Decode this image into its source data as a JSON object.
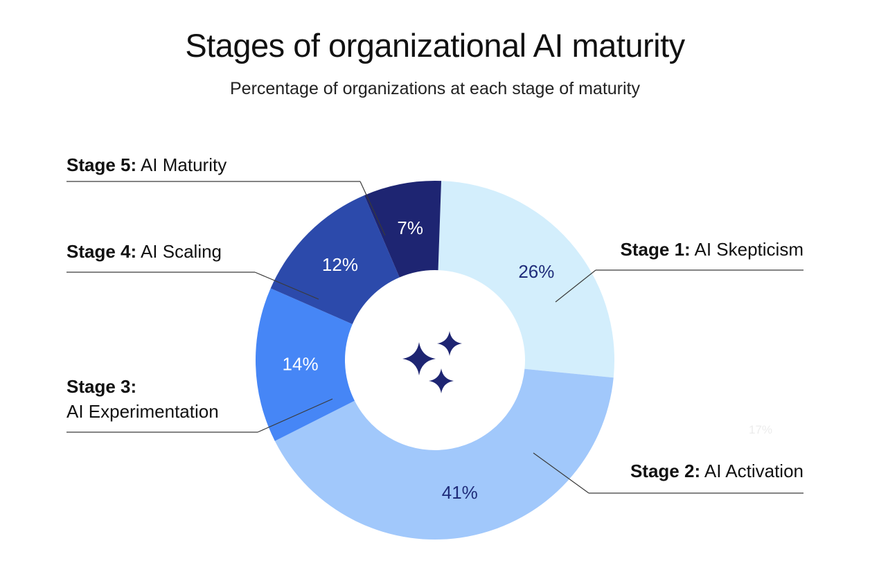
{
  "title": "Stages of organizational AI maturity",
  "subtitle": "Percentage of organizations at each stage of maturity",
  "stray_label": "17%",
  "chart_data": {
    "type": "pie",
    "variant": "donut",
    "title": "Stages of organizational AI maturity",
    "subtitle": "Percentage of organizations at each stage of maturity",
    "unit": "%",
    "slices": [
      {
        "stage": "Stage 1:",
        "name": "AI Skepticism",
        "value": 26,
        "label": "26%",
        "color": "#D3EEFC",
        "text_color": "#1F2C7A"
      },
      {
        "stage": "Stage 2:",
        "name": "AI Activation",
        "value": 41,
        "label": "41%",
        "color": "#A1C8FB",
        "text_color": "#1F2C7A"
      },
      {
        "stage": "Stage 3:",
        "name": "AI Experimentation",
        "value": 14,
        "label": "14%",
        "color": "#4686F6",
        "text_color": "#FFFFFF"
      },
      {
        "stage": "Stage 4:",
        "name": "AI Scaling",
        "value": 12,
        "label": "12%",
        "color": "#2C4AAB",
        "text_color": "#FFFFFF"
      },
      {
        "stage": "Stage 5:",
        "name": "AI Maturity",
        "value": 7,
        "label": "7%",
        "color": "#1E2572",
        "text_color": "#FFFFFF"
      }
    ],
    "center_icon": "sparkles-icon",
    "icon_color": "#1E2572",
    "legend": "callout labels beside slices"
  }
}
